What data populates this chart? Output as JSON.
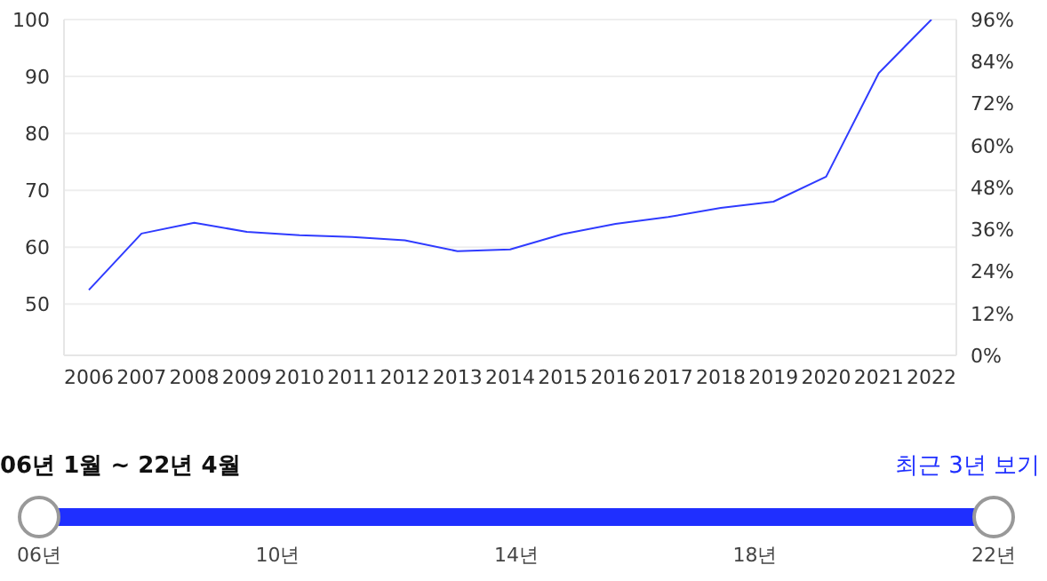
{
  "chart_data": {
    "type": "line",
    "categories": [
      "2006",
      "2007",
      "2008",
      "2009",
      "2010",
      "2011",
      "2012",
      "2013",
      "2014",
      "2015",
      "2016",
      "2017",
      "2018",
      "2019",
      "2020",
      "2021",
      "2022"
    ],
    "series": [
      {
        "color": "#2f3bff",
        "values": [
          52.5,
          62.4,
          64.3,
          62.7,
          62.1,
          61.8,
          61.2,
          59.3,
          59.6,
          62.3,
          64.1,
          65.3,
          66.9,
          68.0,
          72.4,
          90.6,
          100
        ]
      }
    ],
    "ylim": [
      41,
      100
    ],
    "yticks": [
      50,
      60,
      70,
      80,
      90,
      100
    ],
    "y2lim": [
      0,
      96
    ],
    "y2ticks": [
      {
        "value": 0,
        "label": "0%"
      },
      {
        "value": 12,
        "label": "12%"
      },
      {
        "value": 24,
        "label": "24%"
      },
      {
        "value": 36,
        "label": "36%"
      },
      {
        "value": 48,
        "label": "48%"
      },
      {
        "value": 60,
        "label": "60%"
      },
      {
        "value": 72,
        "label": "72%"
      },
      {
        "value": 84,
        "label": "84%"
      },
      {
        "value": 96,
        "label": "96%"
      }
    ],
    "grid": "y",
    "legend": false,
    "marker": "none",
    "line_style": "solid",
    "annotations": [
      "06년 1월 ~ 22년 4월",
      "최근 3년 보기",
      "06년",
      "10년",
      "14년",
      "18년",
      "22년"
    ]
  }
}
